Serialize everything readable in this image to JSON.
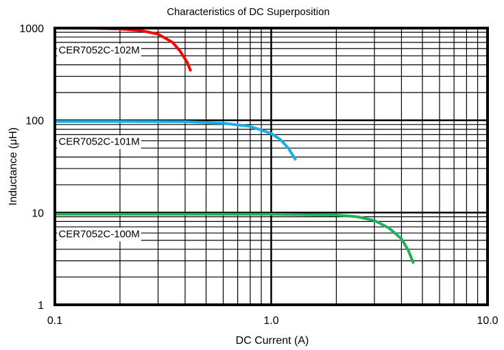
{
  "chart_data": {
    "type": "line",
    "title": "Characteristics of DC Superposition",
    "xlabel": "DC Current (A)",
    "ylabel": "Inductance (μH)",
    "x_scale": "log",
    "y_scale": "log",
    "xlim": [
      0.1,
      10.0
    ],
    "ylim": [
      1,
      1000
    ],
    "grid": true,
    "x_ticks": [
      {
        "value": 0.1,
        "label": "0.1"
      },
      {
        "value": 1.0,
        "label": "1.0"
      },
      {
        "value": 10.0,
        "label": "10.0"
      }
    ],
    "y_ticks": [
      {
        "value": 1,
        "label": "1"
      },
      {
        "value": 10,
        "label": "10"
      },
      {
        "value": 100,
        "label": "100"
      },
      {
        "value": 1000,
        "label": "1000"
      }
    ],
    "series": [
      {
        "name": "CER7052C-102M",
        "color": "#ff0000",
        "label_at": {
          "x": 0.104,
          "y": 530
        },
        "points": [
          [
            0.1,
            1000
          ],
          [
            0.15,
            995
          ],
          [
            0.2,
            980
          ],
          [
            0.25,
            940
          ],
          [
            0.3,
            860
          ],
          [
            0.35,
            700
          ],
          [
            0.38,
            560
          ],
          [
            0.41,
            420
          ],
          [
            0.425,
            340
          ]
        ]
      },
      {
        "name": "CER7052C-101M",
        "color": "#19aee8",
        "label_at": {
          "x": 0.104,
          "y": 54
        },
        "points": [
          [
            0.1,
            97
          ],
          [
            0.2,
            97
          ],
          [
            0.4,
            96.5
          ],
          [
            0.6,
            93
          ],
          [
            0.8,
            86
          ],
          [
            1.0,
            72
          ],
          [
            1.1,
            62
          ],
          [
            1.2,
            50
          ],
          [
            1.3,
            37
          ]
        ]
      },
      {
        "name": "CER7052C-100M",
        "color": "#1fb15a",
        "label_at": {
          "x": 0.104,
          "y": 5.4
        },
        "points": [
          [
            0.1,
            9.6
          ],
          [
            0.5,
            9.6
          ],
          [
            1.0,
            9.6
          ],
          [
            2.0,
            9.4
          ],
          [
            2.5,
            9.0
          ],
          [
            3.0,
            8.2
          ],
          [
            3.5,
            6.8
          ],
          [
            4.0,
            5.2
          ],
          [
            4.3,
            3.9
          ],
          [
            4.55,
            2.8
          ]
        ]
      }
    ]
  }
}
